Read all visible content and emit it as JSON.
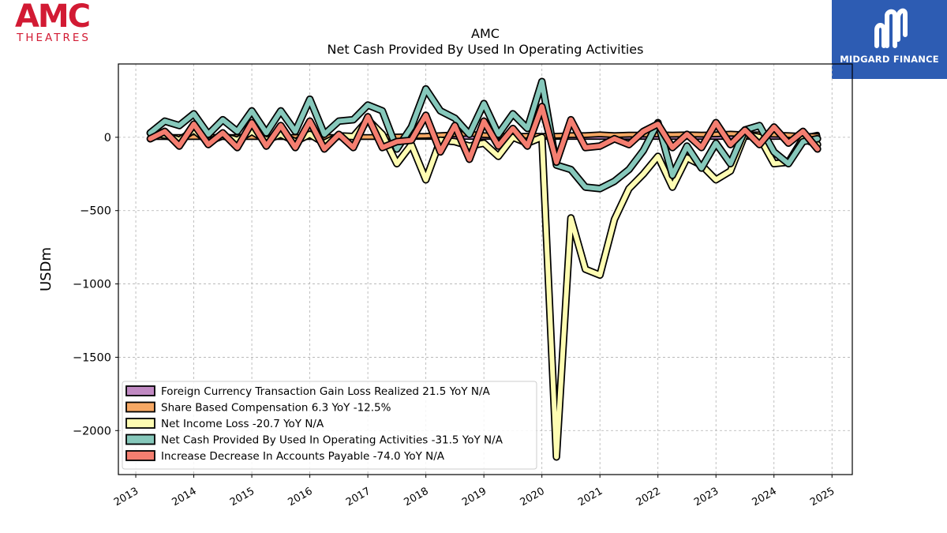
{
  "branding": {
    "amc_logo_text": "AMC",
    "amc_logo_subtext": "THEATRES",
    "amc_logo_color": "#d21a33",
    "midgard_logo_text": "MIDGARD FINANCE",
    "midgard_logo_color": "#2d5cb3"
  },
  "chart_data": {
    "type": "line",
    "title": "AMC",
    "subtitle": "Net Cash Provided By Used In Operating Activities",
    "xlabel": "",
    "ylabel": "USDm",
    "xlim": [
      2012.7,
      2025.35
    ],
    "ylim": [
      -2300,
      500
    ],
    "yticks": [
      0,
      -500,
      -1000,
      -1500,
      -2000
    ],
    "ytick_labels": [
      "0",
      "−500",
      "−1000",
      "−1500",
      "−2000"
    ],
    "xticks": [
      2013,
      2014,
      2015,
      2016,
      2017,
      2018,
      2019,
      2020,
      2021,
      2022,
      2023,
      2024,
      2025
    ],
    "xtick_labels": [
      "2013",
      "2014",
      "2015",
      "2016",
      "2017",
      "2018",
      "2019",
      "2020",
      "2021",
      "2022",
      "2023",
      "2024",
      "2025"
    ],
    "grid": true,
    "legend_placement": "lower-left",
    "x": [
      2013.25,
      2013.5,
      2013.75,
      2014.0,
      2014.25,
      2014.5,
      2014.75,
      2015.0,
      2015.25,
      2015.5,
      2015.75,
      2016.0,
      2016.25,
      2016.5,
      2016.75,
      2017.0,
      2017.25,
      2017.5,
      2017.75,
      2018.0,
      2018.25,
      2018.5,
      2018.75,
      2019.0,
      2019.25,
      2019.5,
      2019.75,
      2020.0,
      2020.25,
      2020.5,
      2020.75,
      2021.0,
      2021.25,
      2021.5,
      2021.75,
      2022.0,
      2022.25,
      2022.5,
      2022.75,
      2023.0,
      2023.25,
      2023.5,
      2023.75,
      2024.0,
      2024.25,
      2024.5,
      2024.75
    ],
    "series": [
      {
        "name": "Foreign Currency Transaction Gain Loss Realized  21.5 YoY N/A",
        "color": "#c089c2",
        "line_width": 3,
        "values": [
          0,
          0,
          0,
          0,
          0,
          0,
          0,
          0,
          0,
          0,
          0,
          0,
          0,
          0,
          0,
          0,
          0,
          0,
          0,
          0,
          0,
          0,
          0,
          0,
          0,
          0,
          0,
          0,
          0,
          0,
          0,
          0,
          0,
          0,
          0,
          0,
          0,
          0,
          0,
          0,
          0,
          0,
          0,
          0,
          0,
          0,
          20
        ]
      },
      {
        "name": "Share Based Compensation  6.3 YoY -12.5%",
        "color": "#f6a864",
        "line_width": 4,
        "values": [
          2,
          2,
          2,
          2,
          2,
          2,
          2,
          2,
          2,
          2,
          2,
          2,
          2,
          2,
          2,
          2,
          2,
          5,
          8,
          10,
          15,
          20,
          25,
          15,
          10,
          10,
          10,
          10,
          10,
          15,
          15,
          20,
          15,
          18,
          18,
          20,
          18,
          20,
          18,
          20,
          25,
          20,
          20,
          18,
          15,
          10,
          8
        ]
      },
      {
        "name": "Net Income Loss  -20.7 YoY N/A",
        "color": "#fefcb2",
        "line_width": 6,
        "values": [
          30,
          15,
          -20,
          50,
          -30,
          10,
          -20,
          40,
          -20,
          20,
          -30,
          20,
          -40,
          10,
          5,
          120,
          20,
          -180,
          -50,
          -290,
          -20,
          -30,
          -60,
          -40,
          -130,
          0,
          -40,
          0,
          -2180,
          -550,
          -900,
          -940,
          -560,
          -350,
          -250,
          -130,
          -340,
          -140,
          -190,
          -290,
          -230,
          20,
          0,
          -180,
          -170,
          -10,
          -50
        ]
      },
      {
        "name": "Net Cash Provided By Used In Operating Activities  -31.5 YoY N/A",
        "color": "#86c8bb",
        "line_width": 6,
        "values": [
          30,
          110,
          80,
          160,
          20,
          120,
          40,
          180,
          30,
          180,
          40,
          260,
          20,
          110,
          120,
          220,
          180,
          -80,
          70,
          330,
          180,
          130,
          20,
          230,
          20,
          160,
          60,
          380,
          -190,
          -220,
          -340,
          -350,
          -300,
          -220,
          -90,
          100,
          -260,
          -60,
          -210,
          -40,
          -180,
          50,
          80,
          -100,
          -180,
          -30,
          -10
        ]
      },
      {
        "name": "Increase Decrease In Accounts Payable  -74.0 YoY N/A",
        "color": "#f47e70",
        "line_width": 6,
        "values": [
          -10,
          40,
          -60,
          90,
          -50,
          30,
          -70,
          100,
          -60,
          80,
          -70,
          110,
          -80,
          20,
          -70,
          140,
          -70,
          -30,
          -20,
          150,
          -100,
          80,
          -150,
          110,
          -60,
          60,
          -60,
          210,
          -170,
          120,
          -70,
          -60,
          -10,
          -50,
          40,
          90,
          -70,
          20,
          -70,
          100,
          -50,
          50,
          -50,
          70,
          -40,
          40,
          -80
        ]
      }
    ]
  }
}
